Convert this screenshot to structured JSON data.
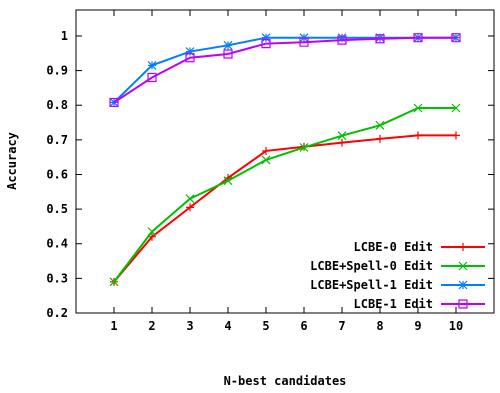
{
  "chart_data": {
    "type": "line",
    "title": "",
    "xlabel": "N-best candidates",
    "ylabel": "Accuracy",
    "x": [
      1,
      2,
      3,
      4,
      5,
      6,
      7,
      8,
      9,
      10
    ],
    "xlim": [
      0,
      11
    ],
    "ylim": [
      0.2,
      1.075
    ],
    "xticks": [
      "1",
      "2",
      "3",
      "4",
      "5",
      "6",
      "7",
      "8",
      "9",
      "10"
    ],
    "yticks": [
      "0.2",
      "0.3",
      "0.4",
      "0.5",
      "0.6",
      "0.7",
      "0.8",
      "0.9",
      "1"
    ],
    "grid": false,
    "legend_position": "bottom-right",
    "series": [
      {
        "name": "LCBE-0 Edit",
        "color": "#ff0000",
        "marker": "plus",
        "values": [
          0.29,
          0.42,
          0.505,
          0.59,
          0.668,
          0.68,
          0.692,
          0.703,
          0.713,
          0.713
        ]
      },
      {
        "name": "LCBE+Spell-0 Edit",
        "color": "#00c000",
        "marker": "x",
        "values": [
          0.29,
          0.435,
          0.53,
          0.582,
          0.642,
          0.678,
          0.712,
          0.742,
          0.792,
          0.792
        ]
      },
      {
        "name": "LCBE+Spell-1 Edit",
        "color": "#0080ff",
        "marker": "star",
        "values": [
          0.808,
          0.915,
          0.955,
          0.973,
          0.995,
          0.995,
          0.995,
          0.995,
          0.995,
          0.995
        ]
      },
      {
        "name": "LCBE-1 Edit",
        "color": "#c000ff",
        "marker": "square",
        "values": [
          0.808,
          0.88,
          0.937,
          0.948,
          0.978,
          0.982,
          0.988,
          0.992,
          0.995,
          0.995
        ]
      }
    ]
  }
}
